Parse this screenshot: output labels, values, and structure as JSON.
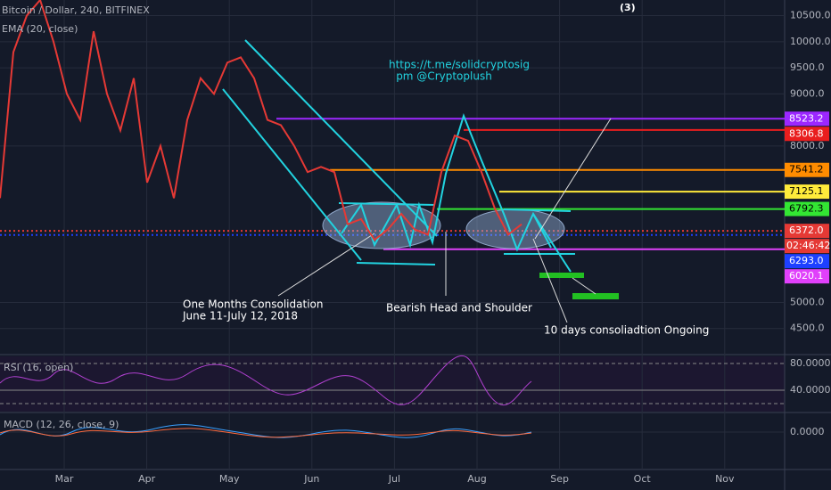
{
  "header": {
    "symbol": "Bitcoin / Dollar, 240, BITFINEX",
    "ema": "EMA (20, close)",
    "count": "(3)"
  },
  "annotations": {
    "link": "https://t.me/solidcryptosig",
    "pm": "pm @Cryptoplush",
    "consolidation": "One Months Consolidation",
    "dates": "June 11-July 12, 2018",
    "hs": "Bearish Head and Shoulder",
    "ongoing": "10 days consoliadtion Ongoing"
  },
  "price_axis": {
    "ylim": [
      4000,
      10800
    ],
    "ticks": [
      {
        "value": 10500,
        "label": "10500.0"
      },
      {
        "value": 10000,
        "label": "10000.0"
      },
      {
        "value": 9500,
        "label": "9500.0"
      },
      {
        "value": 9000,
        "label": "9000.0"
      },
      {
        "value": 8000,
        "label": "8000.0"
      },
      {
        "value": 5000,
        "label": "5000.0"
      },
      {
        "value": 4500,
        "label": "4500.0"
      }
    ]
  },
  "levels": [
    {
      "value": 8523.2,
      "label": "8523.2",
      "color": "#9c27ff"
    },
    {
      "value": 8306.8,
      "label": "8306.8",
      "color": "#e91e1e"
    },
    {
      "value": 7541.2,
      "label": "7541.2",
      "color": "#ff8c00"
    },
    {
      "value": 7125.1,
      "label": "7125.1",
      "color": "#ffeb3b"
    },
    {
      "value": 6792.3,
      "label": "6792.3",
      "color": "#33e633"
    },
    {
      "value": 6372.0,
      "label": "6372.0",
      "color": "#e53935"
    },
    {
      "value": 6293.0,
      "label": "6293.0",
      "color": "#1e40ff"
    },
    {
      "value": 6020.1,
      "label": "6020.1",
      "color": "#e040fb"
    }
  ],
  "countdown": "02:46:42",
  "price": [
    7000,
    9800,
    10500,
    10800,
    10000,
    9000,
    8500,
    10200,
    9000,
    8300,
    9300,
    7300,
    8000,
    7000,
    8500,
    9300,
    9000,
    9600,
    9700,
    9300,
    8500,
    8400,
    8000,
    7500,
    7600,
    7500,
    6500,
    6600,
    6200,
    6400,
    6700,
    6400,
    6300,
    7500,
    8200,
    8100,
    7500,
    6800,
    6300,
    6500
  ],
  "months": [
    "Mar",
    "Apr",
    "May",
    "Jun",
    "Jul",
    "Aug",
    "Sep",
    "Oct",
    "Nov"
  ],
  "rsi": {
    "label": "RSI (16, open)",
    "ticks": [
      {
        "value": 80,
        "label": "80.0000"
      },
      {
        "value": 40,
        "label": "40.0000"
      }
    ]
  },
  "macd": {
    "label": "MACD (12, 26, close, 9)",
    "ticks": [
      {
        "value": 0,
        "label": "0.0000"
      }
    ]
  }
}
